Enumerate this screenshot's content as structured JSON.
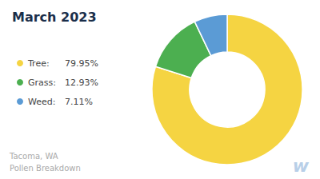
{
  "chart_data": {
    "type": "donut",
    "title": "March 2023",
    "categories": [
      "Tree:",
      "Grass:",
      "Weed:"
    ],
    "values": [
      79.95,
      12.93,
      7.11
    ],
    "value_labels": [
      "79.95%",
      "12.93%",
      "7.11%"
    ],
    "colors": [
      "#f5d442",
      "#4caf50",
      "#5b9bd5"
    ],
    "legend": "left",
    "annotations": [
      "Tacoma, WA\nPollen Breakdown",
      "w"
    ]
  }
}
